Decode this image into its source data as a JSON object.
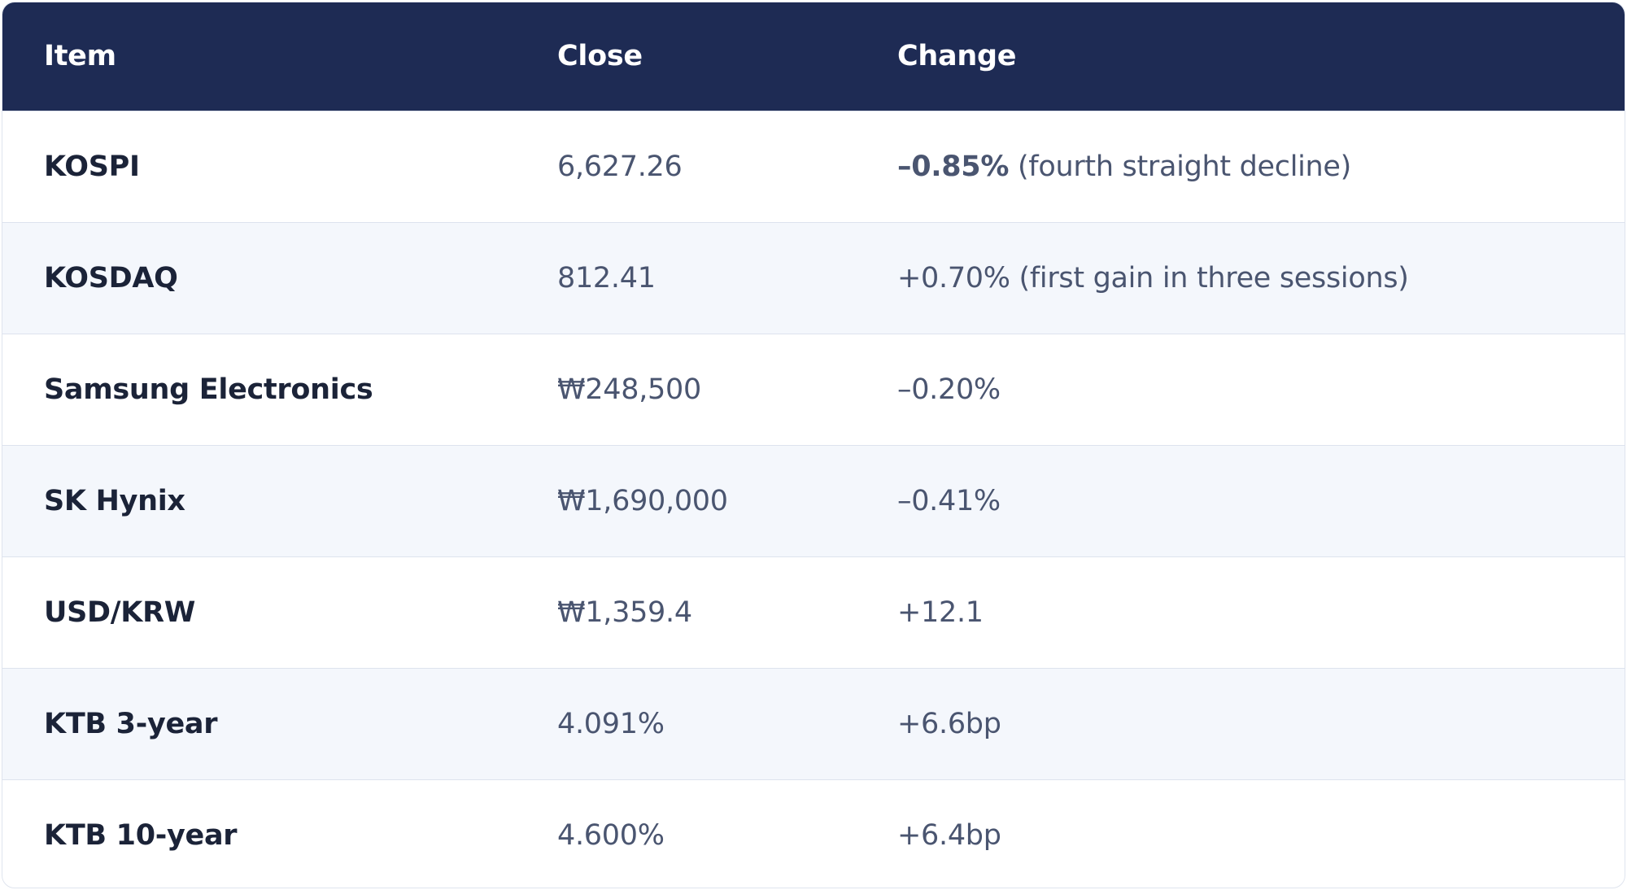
{
  "table": {
    "headers": [
      "Item",
      "Close",
      "Change"
    ],
    "rows": [
      {
        "item": "KOSPI",
        "close": "6,627.26",
        "change": "–0.85%",
        "change_note": " (fourth straight decline)",
        "close_bold": true,
        "change_bold": true
      },
      {
        "item": "KOSDAQ",
        "close": "812.41",
        "change": "+0.70%",
        "change_note": " (first gain in three sessions)",
        "close_bold": false,
        "change_bold": false
      },
      {
        "item": "Samsung Electronics",
        "close": "₩248,500",
        "change": "–0.20%",
        "change_note": "",
        "close_bold": false,
        "change_bold": false
      },
      {
        "item": "SK Hynix",
        "close": "₩1,690,000",
        "change": "–0.41%",
        "change_note": "",
        "close_bold": false,
        "change_bold": false
      },
      {
        "item": "USD/KRW",
        "close": "₩1,359.4",
        "change": "+12.1",
        "change_note": "",
        "close_bold": true,
        "change_bold": true
      },
      {
        "item": "KTB 3-year",
        "close": "4.091%",
        "change": "+6.6bp",
        "change_note": "",
        "close_bold": true,
        "change_bold": true
      },
      {
        "item": "KTB 10-year",
        "close": "4.600%",
        "change": "+6.4bp",
        "change_note": "",
        "close_bold": true,
        "change_bold": true
      }
    ]
  },
  "colors": {
    "header_bg": "#1e2b54",
    "alt_row_bg": "#f4f7fc",
    "item_text": "#1b2338",
    "value_text": "#4a5570"
  }
}
